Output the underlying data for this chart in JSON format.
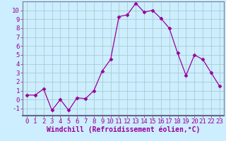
{
  "x": [
    0,
    1,
    2,
    3,
    4,
    5,
    6,
    7,
    8,
    9,
    10,
    11,
    12,
    13,
    14,
    15,
    16,
    17,
    18,
    19,
    20,
    21,
    22,
    23
  ],
  "y": [
    0.5,
    0.5,
    1.2,
    -1.2,
    0.0,
    -1.2,
    0.2,
    0.1,
    1.0,
    3.2,
    4.5,
    9.3,
    9.5,
    10.8,
    9.8,
    10.0,
    9.1,
    8.0,
    5.2,
    2.7,
    5.0,
    4.5,
    3.0,
    1.5
  ],
  "line_color": "#990099",
  "marker": "D",
  "marker_size": 2.5,
  "bg_color": "#cceeff",
  "grid_color": "#aacccc",
  "axis_bg_color": "#cceeff",
  "xlabel": "Windchill (Refroidissement éolien,°C)",
  "xlim": [
    -0.5,
    23.5
  ],
  "ylim": [
    -1.8,
    11.0
  ],
  "xticks": [
    0,
    1,
    2,
    3,
    4,
    5,
    6,
    7,
    8,
    9,
    10,
    11,
    12,
    13,
    14,
    15,
    16,
    17,
    18,
    19,
    20,
    21,
    22,
    23
  ],
  "yticks": [
    -1,
    0,
    1,
    2,
    3,
    4,
    5,
    6,
    7,
    8,
    9,
    10
  ],
  "xlabel_fontsize": 7.0,
  "tick_fontsize": 6.5,
  "spine_color": "#777799",
  "bottom_spine_color": "#666688"
}
